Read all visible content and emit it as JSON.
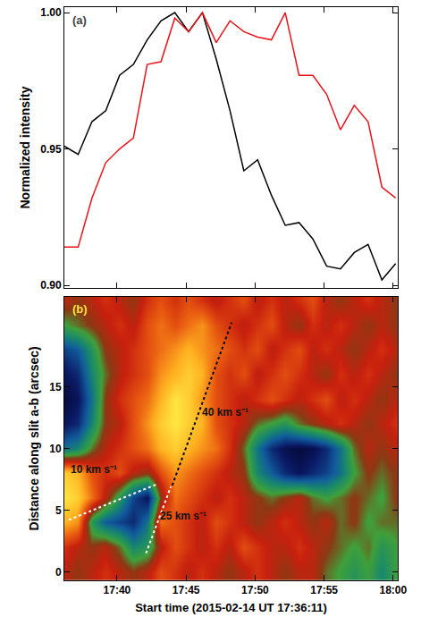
{
  "chart_data": [
    {
      "type": "line",
      "panel": "(a)",
      "ylabel": "Normalized intensity",
      "x": [
        "2015-02-14 17:36:11",
        "2015-02-14 17:37:11",
        "2015-02-14 17:38:11",
        "2015-02-14 17:39:11",
        "2015-02-14 17:40:11",
        "2015-02-14 17:41:11",
        "2015-02-14 17:42:11",
        "2015-02-14 17:43:11",
        "2015-02-14 17:44:11",
        "2015-02-14 17:45:11",
        "2015-02-14 17:46:11",
        "2015-02-14 17:47:11",
        "2015-02-14 17:48:11",
        "2015-02-14 17:49:11",
        "2015-02-14 17:50:11",
        "2015-02-14 17:51:11",
        "2015-02-14 17:52:11",
        "2015-02-14 17:53:11",
        "2015-02-14 17:54:11",
        "2015-02-14 17:55:11",
        "2015-02-14 17:56:11",
        "2015-02-14 17:57:11",
        "2015-02-14 17:58:11",
        "2015-02-14 17:59:11",
        "2015-02-14 18:00:11"
      ],
      "series": [
        {
          "color": "#000000",
          "values": [
            0.951,
            0.948,
            0.96,
            0.964,
            0.977,
            0.981,
            0.99,
            0.997,
            1.0,
            0.993,
            1.0,
            0.983,
            0.964,
            0.942,
            0.946,
            0.933,
            0.922,
            0.923,
            0.917,
            0.907,
            0.906,
            0.912,
            0.915,
            0.902,
            0.908
          ]
        },
        {
          "color": "#e8141a",
          "values": [
            0.914,
            0.914,
            0.932,
            0.945,
            0.95,
            0.954,
            0.981,
            0.982,
            0.998,
            0.993,
            1.0,
            0.989,
            0.997,
            0.993,
            0.991,
            0.99,
            1.0,
            0.977,
            0.977,
            0.97,
            0.957,
            0.966,
            0.96,
            0.936,
            0.932
          ]
        }
      ],
      "xlim": [
        "2015-02-14 17:36:11",
        "2015-02-14 18:00:20"
      ],
      "xticks": [
        {
          "value": "2015-02-14 17:40:00",
          "label": "17:40"
        },
        {
          "value": "2015-02-14 17:45:00",
          "label": "17:45"
        },
        {
          "value": "2015-02-14 17:50:00",
          "label": "17:50"
        },
        {
          "value": "2015-02-14 17:55:00",
          "label": "17:55"
        },
        {
          "value": "2015-02-14 18:00:00",
          "label": "18:00"
        }
      ],
      "ylim": [
        0.899,
        1.002
      ],
      "yticks": [
        {
          "value": 0.9,
          "label": "0.90"
        },
        {
          "value": 0.95,
          "label": "0.95"
        },
        {
          "value": 1.0,
          "label": "1.00"
        }
      ],
      "tick_labels": "y",
      "grid": false
    },
    {
      "type": "heatmap",
      "panel": "(b)",
      "xlabel": "Start time (2015-02-14 UT 17:36:11)",
      "ylabel": "Distance along slit a-b (arcsec)",
      "x": [
        "2015-02-14 17:36:11",
        "2015-02-14 17:37:11",
        "2015-02-14 17:38:11",
        "2015-02-14 17:39:11",
        "2015-02-14 17:40:11",
        "2015-02-14 17:41:11",
        "2015-02-14 17:42:11",
        "2015-02-14 17:43:11",
        "2015-02-14 17:44:11",
        "2015-02-14 17:45:11",
        "2015-02-14 17:46:11",
        "2015-02-14 17:47:11",
        "2015-02-14 17:48:11",
        "2015-02-14 17:49:11",
        "2015-02-14 17:50:11",
        "2015-02-14 17:51:11",
        "2015-02-14 17:52:11",
        "2015-02-14 17:53:11",
        "2015-02-14 17:54:11",
        "2015-02-14 17:55:11",
        "2015-02-14 17:56:11",
        "2015-02-14 17:57:11",
        "2015-02-14 17:58:11",
        "2015-02-14 17:59:11",
        "2015-02-14 18:00:11"
      ],
      "y": [
        0,
        2,
        4,
        6,
        8,
        10,
        12,
        14,
        16,
        18,
        20,
        22
      ],
      "z": [
        [
          0.6,
          0.55,
          0.6,
          0.65,
          0.6,
          0.55,
          0.6,
          0.7,
          0.65,
          0.6,
          0.65,
          0.6,
          0.55,
          0.6,
          0.65,
          0.6,
          0.55,
          0.6,
          0.6,
          0.5,
          0.45,
          0.4,
          0.45,
          0.35,
          0.45
        ],
        [
          0.65,
          0.6,
          0.55,
          0.6,
          0.5,
          0.35,
          0.4,
          0.6,
          0.7,
          0.65,
          0.6,
          0.65,
          0.6,
          0.7,
          0.65,
          0.6,
          0.6,
          0.65,
          0.6,
          0.55,
          0.5,
          0.45,
          0.5,
          0.4,
          0.45
        ],
        [
          0.85,
          0.8,
          0.4,
          0.25,
          0.2,
          0.15,
          0.3,
          0.75,
          0.7,
          0.65,
          0.6,
          0.7,
          0.65,
          0.6,
          0.55,
          0.6,
          0.65,
          0.6,
          0.55,
          0.6,
          0.5,
          0.55,
          0.45,
          0.5,
          0.5
        ],
        [
          0.95,
          0.9,
          0.75,
          0.6,
          0.4,
          0.2,
          0.1,
          0.55,
          0.75,
          0.7,
          0.65,
          0.6,
          0.65,
          0.6,
          0.55,
          0.5,
          0.55,
          0.6,
          0.5,
          0.45,
          0.5,
          0.55,
          0.5,
          0.45,
          0.55
        ],
        [
          0.9,
          0.85,
          0.7,
          0.65,
          0.7,
          0.6,
          0.55,
          0.7,
          0.8,
          0.75,
          0.7,
          0.65,
          0.6,
          0.55,
          0.35,
          0.25,
          0.15,
          0.1,
          0.15,
          0.2,
          0.3,
          0.45,
          0.55,
          0.5,
          0.55
        ],
        [
          0.3,
          0.35,
          0.5,
          0.6,
          0.65,
          0.7,
          0.75,
          0.85,
          0.9,
          0.85,
          0.8,
          0.75,
          0.65,
          0.5,
          0.3,
          0.15,
          0.08,
          0.05,
          0.08,
          0.15,
          0.3,
          0.5,
          0.6,
          0.55,
          0.6
        ],
        [
          0.1,
          0.15,
          0.35,
          0.55,
          0.6,
          0.7,
          0.8,
          0.9,
          0.95,
          0.9,
          0.85,
          0.7,
          0.65,
          0.6,
          0.5,
          0.45,
          0.4,
          0.5,
          0.55,
          0.6,
          0.65,
          0.6,
          0.55,
          0.6,
          0.65
        ],
        [
          0.05,
          0.1,
          0.3,
          0.55,
          0.65,
          0.7,
          0.75,
          0.85,
          0.95,
          0.9,
          0.8,
          0.7,
          0.65,
          0.6,
          0.65,
          0.7,
          0.65,
          0.6,
          0.65,
          0.7,
          0.6,
          0.65,
          0.6,
          0.55,
          0.6
        ],
        [
          0.1,
          0.15,
          0.35,
          0.5,
          0.6,
          0.65,
          0.7,
          0.8,
          0.85,
          0.9,
          0.85,
          0.7,
          0.65,
          0.7,
          0.6,
          0.65,
          0.7,
          0.65,
          0.6,
          0.55,
          0.65,
          0.6,
          0.65,
          0.6,
          0.55
        ],
        [
          0.2,
          0.25,
          0.4,
          0.55,
          0.6,
          0.65,
          0.7,
          0.75,
          0.8,
          0.85,
          0.8,
          0.75,
          0.7,
          0.65,
          0.7,
          0.6,
          0.65,
          0.7,
          0.6,
          0.65,
          0.6,
          0.55,
          0.6,
          0.65,
          0.6
        ],
        [
          0.45,
          0.5,
          0.55,
          0.6,
          0.65,
          0.6,
          0.7,
          0.75,
          0.7,
          0.75,
          0.8,
          0.7,
          0.65,
          0.6,
          0.65,
          0.7,
          0.6,
          0.55,
          0.65,
          0.6,
          0.65,
          0.6,
          0.55,
          0.6,
          0.55
        ],
        [
          0.6,
          0.55,
          0.6,
          0.65,
          0.6,
          0.55,
          0.65,
          0.7,
          0.65,
          0.7,
          0.65,
          0.6,
          0.65,
          0.7,
          0.6,
          0.65,
          0.6,
          0.65,
          0.7,
          0.6,
          0.55,
          0.6,
          0.65,
          0.6,
          0.55
        ]
      ],
      "zlim": [
        0,
        1
      ],
      "lines": [
        {
          "color": "#ffffff",
          "line_style": "dotted",
          "x": [
            "2015-02-14 17:36:30",
            "2015-02-14 17:42:54"
          ],
          "y": [
            4.2,
            7.1
          ]
        },
        {
          "color": "#ffffff",
          "line_style": "dotted",
          "x": [
            "2015-02-14 17:42:06",
            "2015-02-14 17:43:54"
          ],
          "y": [
            1.5,
            6.9
          ]
        },
        {
          "color": "#000000",
          "line_style": "dotted",
          "x": [
            "2015-02-14 17:44:00",
            "2015-02-14 17:48:18"
          ],
          "y": [
            7.0,
            20.2
          ]
        }
      ],
      "annotations": [
        {
          "text": "10 km s⁻¹",
          "x": "2015-02-14 17:36:30",
          "y": 8.3
        },
        {
          "text": "25 km s⁻¹",
          "x": "2015-02-14 17:43:00",
          "y": 4.5
        },
        {
          "text": "40 km s⁻¹",
          "x": "2015-02-14 17:46:00",
          "y": 12.9
        }
      ],
      "xlim": [
        "2015-02-14 17:36:11",
        "2015-02-14 18:00:20"
      ],
      "xticks": [
        {
          "value": "2015-02-14 17:40:00",
          "label": "17:40"
        },
        {
          "value": "2015-02-14 17:45:00",
          "label": "17:45"
        },
        {
          "value": "2015-02-14 17:50:00",
          "label": "17:50"
        },
        {
          "value": "2015-02-14 17:55:00",
          "label": "17:55"
        },
        {
          "value": "2015-02-14 18:00:00",
          "label": "18:00"
        }
      ],
      "ylim": [
        -0.7,
        22.3
      ],
      "yticks": [
        0,
        5,
        10,
        15
      ],
      "grid": false
    }
  ]
}
